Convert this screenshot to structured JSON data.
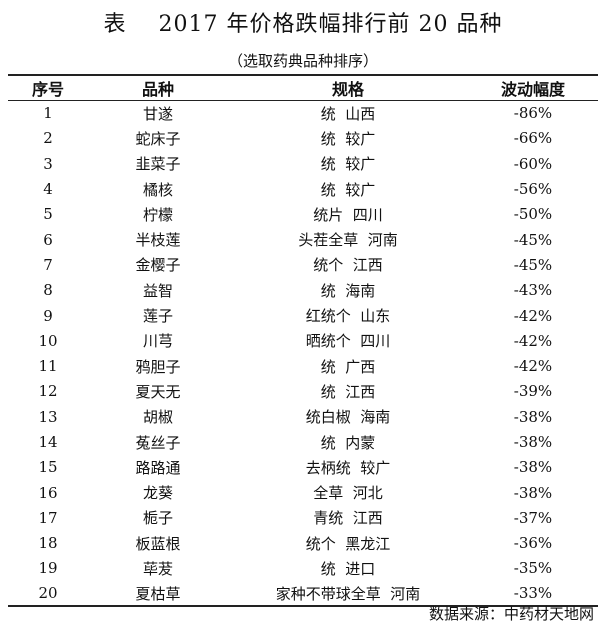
{
  "title": "表    2017 年价格跌幅排行前 20 品种",
  "subtitle": "（选取药典品种排序）",
  "table": {
    "headers": [
      "序号",
      "品种",
      "规格",
      "波动幅度"
    ],
    "rows": [
      {
        "no": "1",
        "name": "甘遂",
        "spec": "统  山西",
        "change": "-86%"
      },
      {
        "no": "2",
        "name": "蛇床子",
        "spec": "统  较广",
        "change": "-66%"
      },
      {
        "no": "3",
        "name": "韭菜子",
        "spec": "统  较广",
        "change": "-60%"
      },
      {
        "no": "4",
        "name": "橘核",
        "spec": "统  较广",
        "change": "-56%"
      },
      {
        "no": "5",
        "name": "柠檬",
        "spec": "统片  四川",
        "change": "-50%"
      },
      {
        "no": "6",
        "name": "半枝莲",
        "spec": "头茬全草  河南",
        "change": "-45%"
      },
      {
        "no": "7",
        "name": "金樱子",
        "spec": "统个  江西",
        "change": "-45%"
      },
      {
        "no": "8",
        "name": "益智",
        "spec": "统  海南",
        "change": "-43%"
      },
      {
        "no": "9",
        "name": "莲子",
        "spec": "红统个  山东",
        "change": "-42%"
      },
      {
        "no": "10",
        "name": "川芎",
        "spec": "晒统个  四川",
        "change": "-42%"
      },
      {
        "no": "11",
        "name": "鸦胆子",
        "spec": "统  广西",
        "change": "-42%"
      },
      {
        "no": "12",
        "name": "夏天无",
        "spec": "统  江西",
        "change": "-39%"
      },
      {
        "no": "13",
        "name": "胡椒",
        "spec": "统白椒  海南",
        "change": "-38%"
      },
      {
        "no": "14",
        "name": "菟丝子",
        "spec": "统  内蒙",
        "change": "-38%"
      },
      {
        "no": "15",
        "name": "路路通",
        "spec": "去柄统  较广",
        "change": "-38%"
      },
      {
        "no": "16",
        "name": "龙葵",
        "spec": "全草  河北",
        "change": "-38%"
      },
      {
        "no": "17",
        "name": "栀子",
        "spec": "青统  江西",
        "change": "-37%"
      },
      {
        "no": "18",
        "name": "板蓝根",
        "spec": "统个  黑龙江",
        "change": "-36%"
      },
      {
        "no": "19",
        "name": "荜茇",
        "spec": "统  进口",
        "change": "-35%"
      },
      {
        "no": "20",
        "name": "夏枯草",
        "spec": "家种不带球全草  河南",
        "change": "-33%"
      }
    ]
  },
  "source": "数据来源：中药材天地网"
}
